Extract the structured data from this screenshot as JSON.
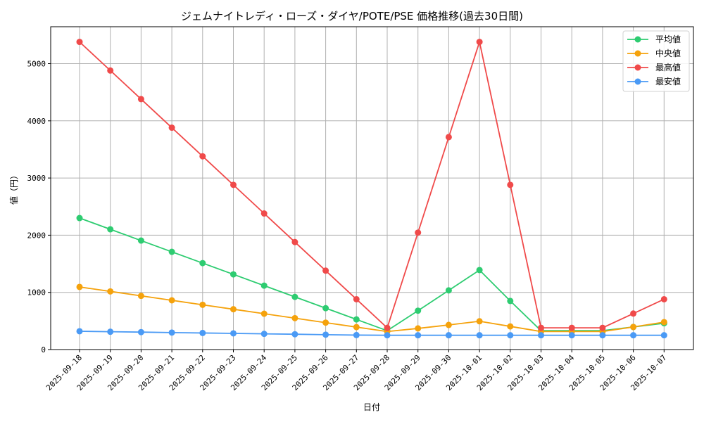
{
  "chart_data": {
    "type": "line",
    "title": "ジェムナイトレディ・ローズ・ダイヤ/POTE/PSE 価格推移(過去30日間)",
    "xlabel": "日付",
    "ylabel": "値（円）",
    "ylim": [
      0,
      5650
    ],
    "yticks": [
      0,
      1000,
      2000,
      3000,
      4000,
      5000
    ],
    "grid": true,
    "legend_position": "upper right",
    "categories": [
      "2025-09-18",
      "2025-09-19",
      "2025-09-20",
      "2025-09-21",
      "2025-09-22",
      "2025-09-23",
      "2025-09-24",
      "2025-09-25",
      "2025-09-26",
      "2025-09-27",
      "2025-09-28",
      "2025-09-29",
      "2025-09-30",
      "2025-10-01",
      "2025-10-02",
      "2025-10-03",
      "2025-10-04",
      "2025-10-05",
      "2025-10-06",
      "2025-10-07"
    ],
    "series": [
      {
        "name": "平均値",
        "color": "#2ecc71",
        "values": [
          2300,
          2103,
          1906,
          1709,
          1512,
          1315,
          1118,
          921,
          724,
          527,
          330,
          680,
          1035,
          1390,
          850,
          330,
          330,
          330,
          395,
          460
        ]
      },
      {
        "name": "中央値",
        "color": "#f5a20c",
        "values": [
          1095,
          1017,
          939,
          861,
          783,
          705,
          627,
          549,
          471,
          393,
          315,
          370,
          430,
          495,
          405,
          315,
          315,
          315,
          395,
          480
        ]
      },
      {
        "name": "最高値",
        "color": "#f04a4a",
        "values": [
          5380,
          4880,
          4380,
          3880,
          3380,
          2880,
          2380,
          1880,
          1380,
          880,
          380,
          2045,
          3715,
          5380,
          2880,
          380,
          380,
          380,
          630,
          880
        ]
      },
      {
        "name": "最安値",
        "color": "#4a9af5",
        "values": [
          320,
          312,
          305,
          297,
          290,
          283,
          275,
          268,
          260,
          253,
          250,
          250,
          250,
          250,
          250,
          250,
          250,
          250,
          250,
          250
        ]
      }
    ]
  }
}
